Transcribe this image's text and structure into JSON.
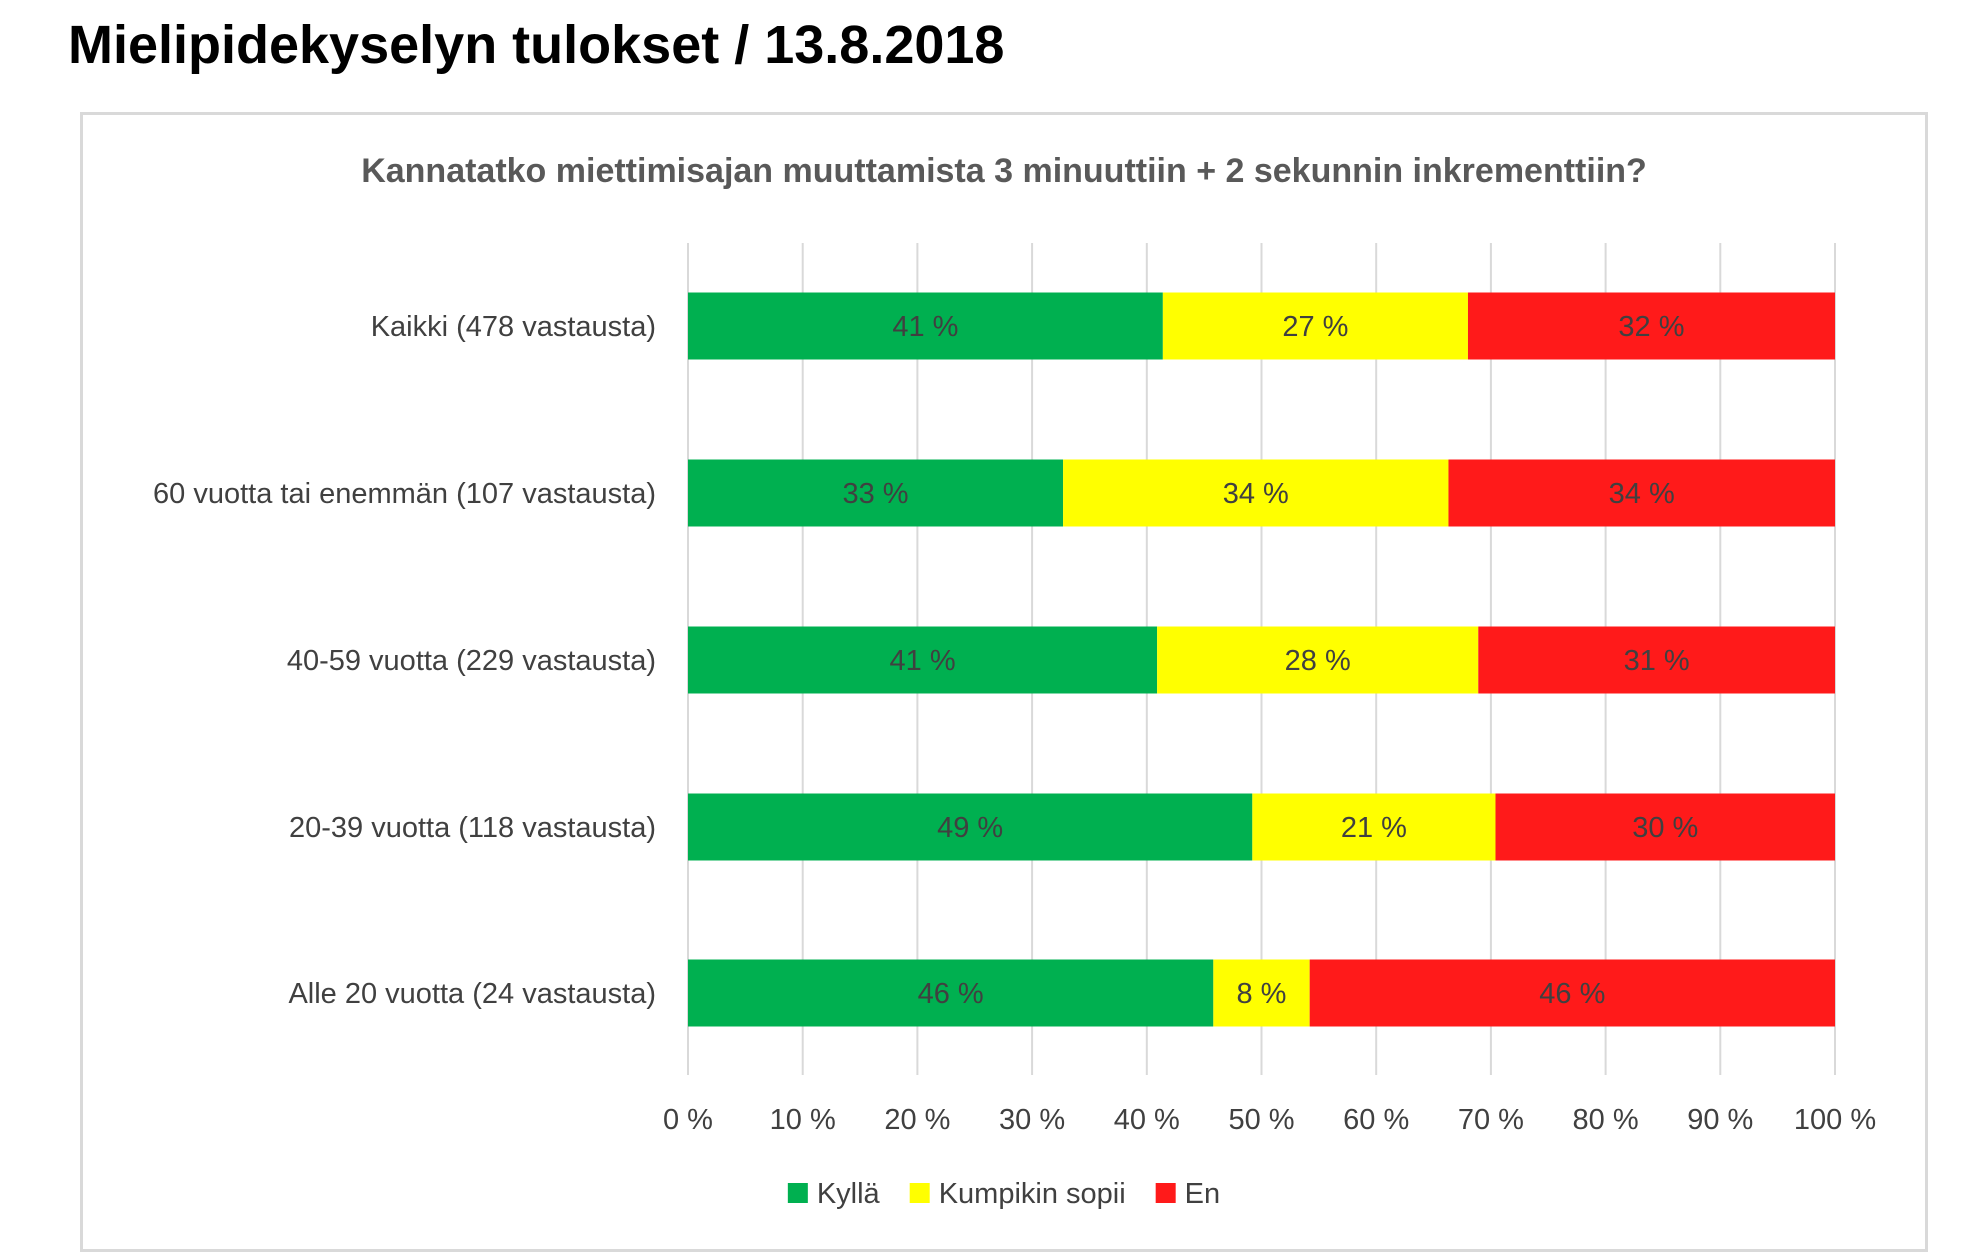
{
  "page": {
    "title": "Mielipidekyselyn tulokset / 13.8.2018"
  },
  "chart_data": {
    "type": "bar",
    "orientation": "horizontal",
    "stacked": "100%",
    "title": "Kannatatko miettimisajan muuttamista 3 minuuttiin + 2 sekunnin inkrementtiin?",
    "categories": [
      "Kaikki (478 vastausta)",
      "60 vuotta tai enemmän (107 vastausta)",
      "40-59 vuotta (229 vastausta)",
      "20-39 vuotta (118 vastausta)",
      "Alle 20 vuotta (24 vastausta)"
    ],
    "series": [
      {
        "name": "Kyllä",
        "color": "#00b050",
        "values": [
          41.4,
          32.7,
          40.9,
          49.2,
          45.8
        ],
        "labels": [
          "41 %",
          "33 %",
          "41 %",
          "49 %",
          "46 %"
        ]
      },
      {
        "name": "Kumpikin sopii",
        "color": "#ffff00",
        "values": [
          26.6,
          33.6,
          28.0,
          21.2,
          8.4
        ],
        "labels": [
          "27 %",
          "34 %",
          "28 %",
          "21 %",
          "8 %"
        ]
      },
      {
        "name": "En",
        "color": "#ff1a1a",
        "values": [
          32.0,
          33.7,
          31.1,
          29.6,
          45.8
        ],
        "labels": [
          "32 %",
          "34 %",
          "31 %",
          "30 %",
          "46 %"
        ]
      }
    ],
    "xlim": [
      0,
      100
    ],
    "xticks": [
      "0 %",
      "10 %",
      "20 %",
      "30 %",
      "40 %",
      "50 %",
      "60 %",
      "70 %",
      "80 %",
      "90 %",
      "100 %"
    ],
    "grid": true,
    "legend_position": "bottom"
  }
}
